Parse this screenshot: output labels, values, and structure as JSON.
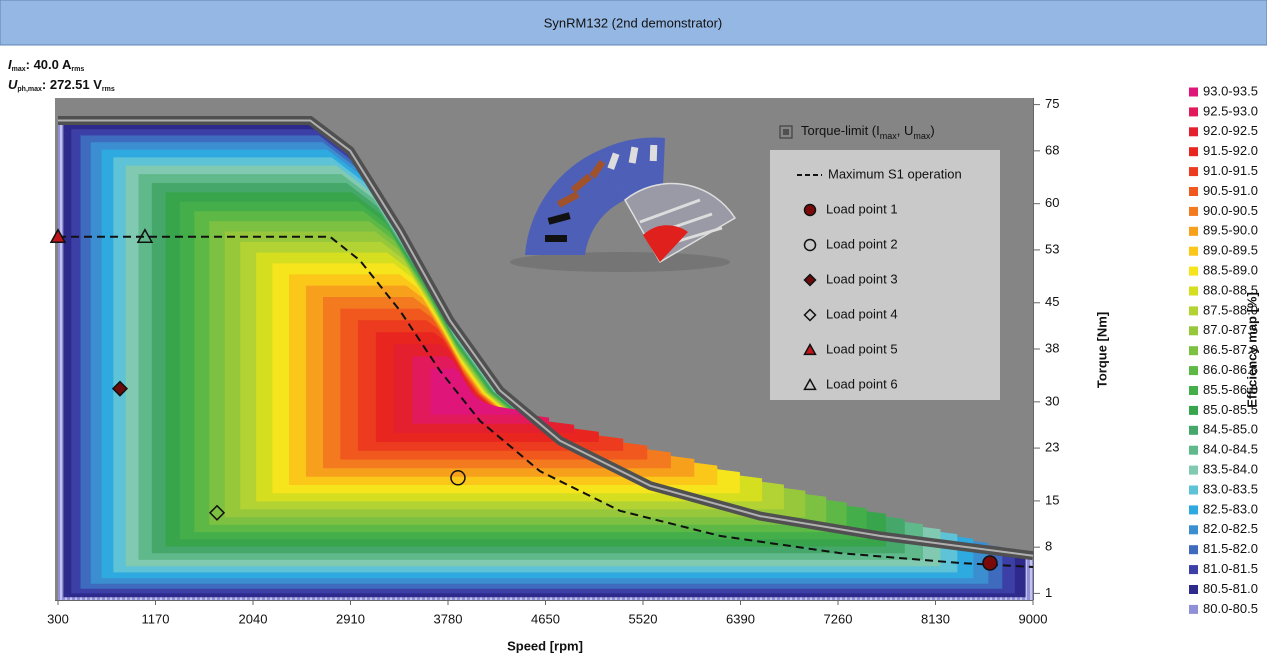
{
  "header": {
    "title": "SynRM132 (2nd demonstrator)"
  },
  "limits": [
    {
      "parts": [
        {
          "text": "I",
          "style": "symbol"
        },
        {
          "text": "max",
          "style": "sub"
        },
        {
          "text": ": 40.0 A",
          "style": "main"
        },
        {
          "text": "rms",
          "style": "sub"
        }
      ]
    },
    {
      "parts": [
        {
          "text": "U",
          "style": "symbol"
        },
        {
          "text": "ph,max",
          "style": "sub"
        },
        {
          "text": ": 272.51 V",
          "style": "main"
        },
        {
          "text": "rms",
          "style": "sub"
        }
      ]
    }
  ],
  "chart_data": {
    "type": "efficiency-map",
    "x_label": "Speed [rpm]",
    "y_label": "Torque [Nm]",
    "xlim": [
      300,
      9000
    ],
    "xticks": [
      300,
      1170,
      2040,
      2910,
      3780,
      4650,
      5520,
      6390,
      7260,
      8130,
      9000
    ],
    "ylim": [
      0,
      76
    ],
    "yticks": [
      1,
      8,
      15,
      23,
      30,
      38,
      45,
      53,
      60,
      68,
      75
    ],
    "torque_limit": {
      "label_parts": [
        {
          "text": "Torque-limit (I",
          "style": "main"
        },
        {
          "text": "max",
          "style": "sub"
        },
        {
          "text": ", U",
          "style": "main"
        },
        {
          "text": "max",
          "style": "sub"
        },
        {
          "text": ")",
          "style": "main"
        }
      ],
      "color": "#858585",
      "x": [
        300,
        2550,
        2907,
        3353,
        3799,
        4245,
        4780,
        5583,
        6565,
        7636,
        9000
      ],
      "values": [
        72.6,
        72.6,
        68,
        55.9,
        42.3,
        31.7,
        24.1,
        17.3,
        12.7,
        9.7,
        6.7
      ]
    },
    "series": [
      {
        "name": "Maximum S1 operation",
        "color": "#111111",
        "x": [
          300,
          2727,
          2995,
          3352,
          3709,
          4066,
          4601,
          5315,
          6207,
          7278,
          8349,
          9000
        ],
        "values": [
          55,
          55,
          51.4,
          43.8,
          34.7,
          27.1,
          19.5,
          13.5,
          9.7,
          7.1,
          5.6,
          5.0
        ]
      }
    ],
    "points": [
      {
        "name": "Load point 1",
        "x": 8616,
        "y": 5.6,
        "marker": "circle",
        "filled": true,
        "color": "#7a0a0a"
      },
      {
        "name": "Load point 2",
        "x": 3869,
        "y": 18.5,
        "marker": "circle",
        "filled": false,
        "color": "#111111"
      },
      {
        "name": "Load point 3",
        "x": 853,
        "y": 32,
        "marker": "diamond",
        "filled": true,
        "color": "#6a0a0a"
      },
      {
        "name": "Load point 4",
        "x": 1719,
        "y": 13.2,
        "marker": "diamond",
        "filled": false,
        "color": "#111111"
      },
      {
        "name": "Load point 5",
        "x": 300,
        "y": 55,
        "marker": "triangle",
        "filled": true,
        "color": "#c0161b"
      },
      {
        "name": "Load point 6",
        "x": 1076,
        "y": 55,
        "marker": "triangle",
        "filled": false,
        "color": "#111111"
      }
    ],
    "colorbar": {
      "label": "Efficiency map [%]",
      "items": [
        {
          "label": "93.0-93.5",
          "color": "#e0157a"
        },
        {
          "label": "92.5-93.0",
          "color": "#e2195a"
        },
        {
          "label": "92.0-92.5",
          "color": "#e41f2e"
        },
        {
          "label": "91.5-92.0",
          "color": "#e8261f"
        },
        {
          "label": "91.0-91.5",
          "color": "#ec3b1f"
        },
        {
          "label": "90.5-91.0",
          "color": "#f0581e"
        },
        {
          "label": "90.0-90.5",
          "color": "#f37a1f"
        },
        {
          "label": "89.5-90.0",
          "color": "#f7a01c"
        },
        {
          "label": "89.0-89.5",
          "color": "#fbc81a"
        },
        {
          "label": "88.5-89.0",
          "color": "#f6e51c"
        },
        {
          "label": "88.0-88.5",
          "color": "#d6de20"
        },
        {
          "label": "87.5-88.0",
          "color": "#b3d334"
        },
        {
          "label": "87.0-87.5",
          "color": "#97c83c"
        },
        {
          "label": "86.5-87.0",
          "color": "#7dc142"
        },
        {
          "label": "86.0-86.5",
          "color": "#5eb846"
        },
        {
          "label": "85.5-86.0",
          "color": "#44af4a"
        },
        {
          "label": "85.0-85.5",
          "color": "#38a54c"
        },
        {
          "label": "84.5-85.0",
          "color": "#45a86a"
        },
        {
          "label": "84.0-84.5",
          "color": "#60b98b"
        },
        {
          "label": "83.5-84.0",
          "color": "#82c9b2"
        },
        {
          "label": "83.0-83.5",
          "color": "#5ec3d6"
        },
        {
          "label": "82.5-83.0",
          "color": "#2faae0"
        },
        {
          "label": "82.0-82.5",
          "color": "#3b8ed0"
        },
        {
          "label": "81.5-82.0",
          "color": "#3e6bbd"
        },
        {
          "label": "81.0-81.5",
          "color": "#3b3fa6"
        },
        {
          "label": "80.5-81.0",
          "color": "#2e2a8c"
        },
        {
          "label": "80.0-80.5",
          "color": "#8f90d8"
        }
      ]
    }
  }
}
